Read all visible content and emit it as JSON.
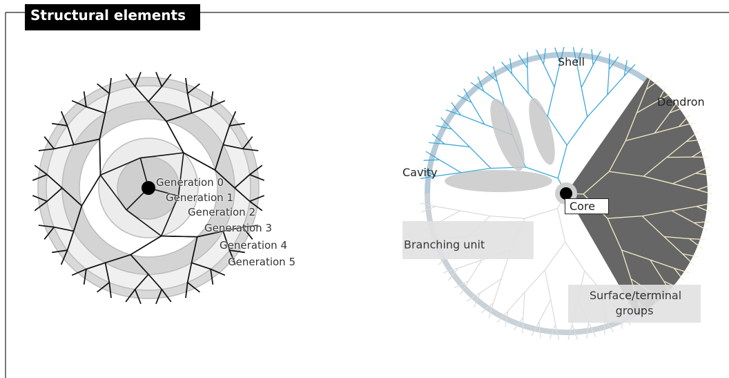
{
  "header": {
    "title": "Structural elements"
  },
  "left_diagram": {
    "generations": [
      "Generation 0",
      "Generation 1",
      "Generation 2",
      "Generation 3",
      "Generation 4",
      "Generation 5"
    ]
  },
  "right_diagram": {
    "shell": "Shell",
    "dendron": "Dendron",
    "cavity": "Cavity",
    "core": "Core",
    "branching_unit": "Branching unit",
    "surface_groups": "Surface/terminal groups"
  }
}
